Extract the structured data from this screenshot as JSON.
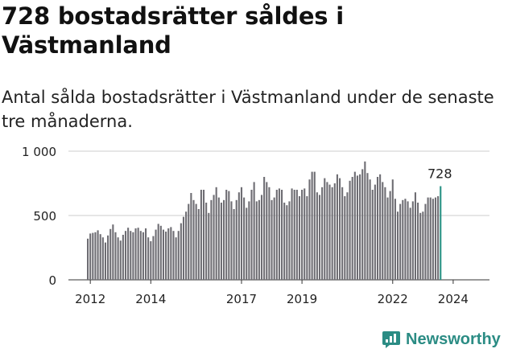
{
  "title": "728 bostadsrätter såldes i Västmanland",
  "subtitle": "Antal sålda bostadsrätter i Västmanland under de senaste tre månaderna.",
  "brand": {
    "name": "Newsworthy",
    "icon": "newsworthy-logo-icon",
    "color": "#2b8c84"
  },
  "colors": {
    "bar": "#6e6d73",
    "highlight": "#2a9285",
    "grid": "#cccccc",
    "axis": "#333333"
  },
  "chart_data": {
    "type": "bar",
    "title": "728 bostadsrätter såldes i Västmanland",
    "xlabel": "",
    "ylabel": "",
    "ylim": [
      0,
      1000
    ],
    "yticks": [
      0,
      500,
      1000
    ],
    "ytick_labels": [
      "0",
      "500",
      "1 000"
    ],
    "xticks": [
      {
        "label": "2012",
        "index": 1
      },
      {
        "label": "2014",
        "index": 25
      },
      {
        "label": "2017",
        "index": 61
      },
      {
        "label": "2019",
        "index": 85
      },
      {
        "label": "2022",
        "index": 121
      },
      {
        "label": "2024",
        "index": 145
      }
    ],
    "highlight_label": "728",
    "grid": true,
    "values": [
      320,
      360,
      365,
      370,
      385,
      355,
      330,
      290,
      345,
      395,
      430,
      370,
      330,
      305,
      350,
      380,
      405,
      380,
      370,
      400,
      405,
      380,
      370,
      400,
      330,
      300,
      340,
      390,
      435,
      420,
      390,
      375,
      400,
      410,
      380,
      330,
      380,
      440,
      490,
      530,
      590,
      675,
      620,
      590,
      550,
      700,
      700,
      600,
      520,
      620,
      660,
      720,
      640,
      600,
      620,
      700,
      690,
      610,
      550,
      620,
      680,
      720,
      640,
      560,
      610,
      700,
      760,
      610,
      620,
      660,
      800,
      760,
      720,
      620,
      640,
      700,
      710,
      700,
      600,
      580,
      610,
      710,
      700,
      700,
      650,
      700,
      710,
      650,
      780,
      840,
      840,
      680,
      660,
      720,
      790,
      760,
      740,
      720,
      750,
      820,
      790,
      720,
      650,
      680,
      770,
      800,
      840,
      810,
      820,
      860,
      920,
      830,
      780,
      700,
      740,
      800,
      820,
      760,
      720,
      640,
      690,
      780,
      630,
      530,
      590,
      620,
      630,
      610,
      560,
      610,
      680,
      600,
      520,
      530,
      590,
      640,
      640,
      630,
      640,
      650,
      728
    ]
  }
}
